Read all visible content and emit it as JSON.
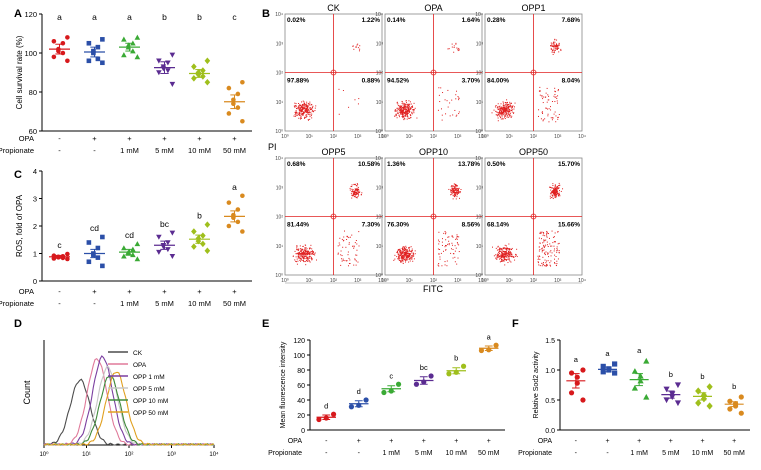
{
  "panel_letters": [
    "A",
    "B",
    "C",
    "D",
    "E",
    "F"
  ],
  "chart_data": [
    {
      "id": "A",
      "type": "scatter",
      "ylabel": "Cell survival rate (%)",
      "ylim": [
        60,
        120
      ],
      "yticks": [
        60,
        80,
        100,
        120
      ],
      "row_labels": [
        "OPA",
        "Propionate"
      ],
      "rows": [
        [
          "-",
          "+",
          "+",
          "+",
          "+",
          "+"
        ],
        [
          "-",
          "-",
          "1 mM",
          "5 mM",
          "10 mM",
          "50 mM"
        ]
      ],
      "groups": [
        {
          "color": "#d7191c",
          "marker": "circle",
          "mean": 102,
          "sem": 2.5,
          "letter": "a",
          "values": [
            108,
            106,
            105,
            102,
            101,
            100,
            98,
            96
          ]
        },
        {
          "color": "#2b4fa8",
          "marker": "square",
          "mean": 100.5,
          "sem": 2.5,
          "letter": "a",
          "values": [
            107,
            105,
            103,
            101,
            100,
            97,
            96,
            95
          ]
        },
        {
          "color": "#3aaa35",
          "marker": "triangle",
          "mean": 103,
          "sem": 2,
          "letter": "a",
          "values": [
            108,
            107,
            105,
            104,
            103,
            101,
            99,
            98
          ]
        },
        {
          "color": "#5b2c91",
          "marker": "triangle-down",
          "mean": 92.5,
          "sem": 3,
          "letter": "b",
          "values": [
            99,
            96,
            95,
            93,
            92,
            91,
            90,
            84
          ]
        },
        {
          "color": "#9fbf1c",
          "marker": "diamond",
          "mean": 89.5,
          "sem": 2,
          "letter": "b",
          "values": [
            96,
            93,
            91,
            90,
            89,
            88,
            87,
            85
          ]
        },
        {
          "color": "#d98a1f",
          "marker": "circle",
          "mean": 75,
          "sem": 3.5,
          "letter": "c",
          "values": [
            85,
            82,
            79,
            76,
            74,
            72,
            69,
            65
          ]
        }
      ]
    },
    {
      "id": "C",
      "type": "scatter",
      "ylabel": "ROS, fold of OPA",
      "ylim": [
        0,
        4
      ],
      "yticks": [
        0,
        1,
        2,
        3,
        4
      ],
      "row_labels": [
        "OPA",
        "Propionate"
      ],
      "rows": [
        [
          "-",
          "+",
          "+",
          "+",
          "+",
          "+"
        ],
        [
          "-",
          "-",
          "1 mM",
          "5 mM",
          "10 mM",
          "50 mM"
        ]
      ],
      "groups": [
        {
          "color": "#d7191c",
          "marker": "circle",
          "mean": 0.88,
          "sem": 0.05,
          "letter": "c",
          "values": [
            0.98,
            0.92,
            0.9,
            0.88,
            0.86,
            0.84,
            0.82,
            0.8
          ]
        },
        {
          "color": "#2b4fa8",
          "marker": "square",
          "mean": 1.0,
          "sem": 0.15,
          "letter": "cd",
          "values": [
            1.6,
            1.4,
            1.2,
            1.0,
            0.95,
            0.85,
            0.7,
            0.55
          ]
        },
        {
          "color": "#3aaa35",
          "marker": "triangle",
          "mean": 1.05,
          "sem": 0.1,
          "letter": "cd",
          "values": [
            1.35,
            1.2,
            1.15,
            1.05,
            1.0,
            0.95,
            0.9,
            0.8
          ]
        },
        {
          "color": "#5b2c91",
          "marker": "triangle-down",
          "mean": 1.3,
          "sem": 0.15,
          "letter": "bc",
          "values": [
            1.75,
            1.6,
            1.4,
            1.3,
            1.25,
            1.15,
            1.05,
            0.9
          ]
        },
        {
          "color": "#9fbf1c",
          "marker": "diamond",
          "mean": 1.52,
          "sem": 0.15,
          "letter": "b",
          "values": [
            2.05,
            1.8,
            1.65,
            1.55,
            1.45,
            1.35,
            1.25,
            1.1
          ]
        },
        {
          "color": "#d98a1f",
          "marker": "circle",
          "mean": 2.35,
          "sem": 0.2,
          "letter": "a",
          "values": [
            3.1,
            2.85,
            2.6,
            2.4,
            2.3,
            2.15,
            2.0,
            1.8
          ]
        }
      ]
    },
    {
      "id": "B",
      "type": "scatter",
      "subtype": "flow-cytometry-quadrants",
      "xlabel": "FITC",
      "ylabel": "PI",
      "axis_range": [
        "10^0",
        "10^4"
      ],
      "gate_at": "10^2",
      "plots": [
        {
          "title": "CK",
          "q": [
            "0.02%",
            "1.22%",
            "97.88%",
            "0.88%"
          ]
        },
        {
          "title": "OPA",
          "q": [
            "0.14%",
            "1.64%",
            "94.52%",
            "3.70%"
          ]
        },
        {
          "title": "OPP1",
          "q": [
            "0.28%",
            "7.68%",
            "84.00%",
            "8.04%"
          ]
        },
        {
          "title": "OPP5",
          "q": [
            "0.68%",
            "10.58%",
            "81.44%",
            "7.30%"
          ]
        },
        {
          "title": "OPP10",
          "q": [
            "1.36%",
            "13.78%",
            "76.30%",
            "8.56%"
          ]
        },
        {
          "title": "OPP50",
          "q": [
            "0.50%",
            "15.70%",
            "68.14%",
            "15.66%"
          ]
        }
      ]
    },
    {
      "id": "D",
      "type": "line",
      "subtype": "histogram-overlay",
      "ylabel": "Count",
      "x_log_ticks": [
        "10^0",
        "10^1",
        "10^2",
        "10^3",
        "10^4"
      ],
      "series": [
        {
          "name": "CK",
          "color": "#4d4d4d",
          "peak_log": 0.85,
          "height": 0.62
        },
        {
          "name": "OPA",
          "color": "#e07a9a",
          "peak_log": 1.25,
          "height": 0.82
        },
        {
          "name": "OPP 1 mM",
          "color": "#7b3fa0",
          "peak_log": 1.38,
          "height": 0.84
        },
        {
          "name": "OPP 5 mM",
          "color": "#c7c7c7",
          "peak_log": 1.5,
          "height": 0.74
        },
        {
          "name": "OPP 10 mM",
          "color": "#3f8a3a",
          "peak_log": 1.55,
          "height": 0.66
        },
        {
          "name": "OPP 50 mM",
          "color": "#e0a020",
          "peak_log": 1.7,
          "height": 0.7
        }
      ]
    },
    {
      "id": "E",
      "type": "scatter",
      "ylabel": "Mean fluorescence intensity",
      "ylim": [
        0,
        120
      ],
      "yticks": [
        0,
        20,
        40,
        60,
        80,
        100,
        120
      ],
      "row_labels": [
        "OPA",
        "Propionate"
      ],
      "rows": [
        [
          "-",
          "+",
          "+",
          "+",
          "+",
          "+"
        ],
        [
          "-",
          "-",
          "1 mM",
          "5 mM",
          "10 mM",
          "50 mM"
        ]
      ],
      "groups": [
        {
          "color": "#d7191c",
          "marker": "circle",
          "mean": 17,
          "sem": 3,
          "letter": "d",
          "values": [
            21,
            16,
            14
          ]
        },
        {
          "color": "#2b4fa8",
          "marker": "circle",
          "mean": 35,
          "sem": 4,
          "letter": "d",
          "values": [
            40,
            33,
            31
          ]
        },
        {
          "color": "#3aaa35",
          "marker": "circle",
          "mean": 55,
          "sem": 4,
          "letter": "c",
          "values": [
            61,
            52,
            50
          ]
        },
        {
          "color": "#5b2c91",
          "marker": "circle",
          "mean": 66,
          "sem": 5,
          "letter": "bc",
          "values": [
            72,
            64,
            61
          ]
        },
        {
          "color": "#9fbf1c",
          "marker": "circle",
          "mean": 79,
          "sem": 4,
          "letter": "b",
          "values": [
            85,
            77,
            75
          ]
        },
        {
          "color": "#d98a1f",
          "marker": "circle",
          "mean": 109,
          "sem": 3,
          "letter": "a",
          "values": [
            113,
            107,
            106
          ]
        }
      ]
    },
    {
      "id": "F",
      "type": "scatter",
      "ylabel": "Relative Sod2 activity",
      "ylim": [
        0.0,
        1.5
      ],
      "yticks": [
        "0.0",
        "0.5",
        "1.0",
        "1.5"
      ],
      "row_labels": [
        "OPA",
        "Propionate"
      ],
      "rows": [
        [
          "-",
          "+",
          "+",
          "+",
          "+",
          "+"
        ],
        [
          "-",
          "-",
          "1 mM",
          "5 mM",
          "10 mM",
          "50 mM"
        ]
      ],
      "groups": [
        {
          "color": "#d7191c",
          "marker": "circle",
          "mean": 0.82,
          "sem": 0.12,
          "letter": "a",
          "values": [
            1.0,
            0.95,
            0.88,
            0.78,
            0.62,
            0.5
          ]
        },
        {
          "color": "#2b4fa8",
          "marker": "square",
          "mean": 1.01,
          "sem": 0.04,
          "letter": "a",
          "values": [
            1.1,
            1.06,
            1.02,
            1.0,
            0.97,
            0.95
          ]
        },
        {
          "color": "#3aaa35",
          "marker": "triangle",
          "mean": 0.84,
          "sem": 0.1,
          "letter": "a",
          "values": [
            1.15,
            0.98,
            0.9,
            0.82,
            0.7,
            0.55
          ]
        },
        {
          "color": "#5b2c91",
          "marker": "triangle-down",
          "mean": 0.59,
          "sem": 0.06,
          "letter": "b",
          "values": [
            0.75,
            0.68,
            0.6,
            0.55,
            0.5,
            0.45
          ]
        },
        {
          "color": "#9fbf1c",
          "marker": "diamond",
          "mean": 0.56,
          "sem": 0.06,
          "letter": "b",
          "values": [
            0.72,
            0.65,
            0.58,
            0.52,
            0.45,
            0.4
          ]
        },
        {
          "color": "#d98a1f",
          "marker": "circle",
          "mean": 0.43,
          "sem": 0.04,
          "letter": "b",
          "values": [
            0.55,
            0.48,
            0.44,
            0.4,
            0.35,
            0.28
          ]
        }
      ]
    }
  ]
}
